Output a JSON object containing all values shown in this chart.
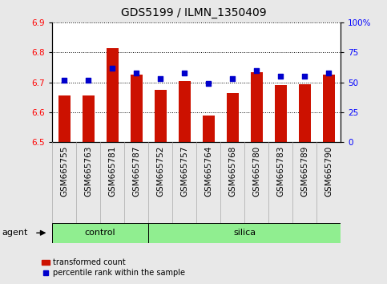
{
  "title": "GDS5199 / ILMN_1350409",
  "samples": [
    "GSM665755",
    "GSM665763",
    "GSM665781",
    "GSM665787",
    "GSM665752",
    "GSM665757",
    "GSM665764",
    "GSM665768",
    "GSM665780",
    "GSM665783",
    "GSM665789",
    "GSM665790"
  ],
  "transformed_counts": [
    6.655,
    6.655,
    6.815,
    6.725,
    6.675,
    6.705,
    6.59,
    6.665,
    6.735,
    6.69,
    6.695,
    6.725
  ],
  "percentile_ranks": [
    52,
    52,
    62,
    58,
    53,
    58,
    49,
    53,
    60,
    55,
    55,
    58
  ],
  "n_control": 4,
  "n_silica": 8,
  "ylim_left": [
    6.5,
    6.9
  ],
  "ylim_right": [
    0,
    100
  ],
  "yticks_left": [
    6.5,
    6.6,
    6.7,
    6.8,
    6.9
  ],
  "yticks_right": [
    0,
    25,
    50,
    75,
    100
  ],
  "ytick_labels_right": [
    "0",
    "25",
    "50",
    "75",
    "100%"
  ],
  "bar_color": "#CC1100",
  "dot_color": "#0000CC",
  "group_color": "#90EE90",
  "group_bg_color": "#d0d0d0",
  "agent_label": "agent",
  "control_label": "control",
  "silica_label": "silica",
  "legend_bar_label": "transformed count",
  "legend_dot_label": "percentile rank within the sample",
  "background_color": "#e8e8e8",
  "plot_bg_color": "#ffffff",
  "bar_width": 0.5,
  "base_value": 6.5,
  "grid_color": "#000000",
  "title_fontsize": 10,
  "tick_fontsize": 7.5,
  "label_fontsize": 8
}
